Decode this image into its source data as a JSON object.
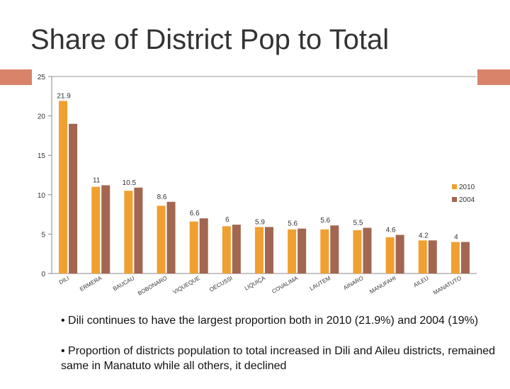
{
  "slide": {
    "title": "Share of District Pop to Total",
    "bullets": [
      "• Dili continues to have the largest proportion both in 2010 (21.9%) and 2004 (19%)",
      "• Proportion of districts population to total increased in Dili and Aileu districts, remained same in Manatuto while all others, it declined"
    ]
  },
  "colors": {
    "series_2010": "#f0a030",
    "series_2004": "#a36650",
    "accent_bar": "#d9836a",
    "grid": "#cccccc"
  },
  "chart_data": {
    "type": "bar",
    "categories": [
      "DILI",
      "ERMERA",
      "BAUCAU",
      "BOBONARO",
      "VIQUEQUE",
      "OECUSSI",
      "LIQUIÇA",
      "COVALIMA",
      "LAUTEM",
      "AINARO",
      "MANUFAHI",
      "AILEU",
      "MANATUTO"
    ],
    "series": [
      {
        "name": "2010",
        "values": [
          21.9,
          11,
          10.5,
          8.6,
          6.6,
          6,
          5.9,
          5.6,
          5.6,
          5.5,
          4.6,
          4.2,
          4
        ]
      },
      {
        "name": "2004",
        "values": [
          19,
          11.2,
          10.9,
          9.1,
          7,
          6.2,
          5.9,
          5.7,
          6.1,
          5.8,
          4.9,
          4.2,
          4
        ]
      }
    ],
    "data_labels": [
      "21.9",
      "11",
      "10.5",
      "8.6",
      "6.6",
      "6",
      "5.9",
      "5.6",
      "5.6",
      "5.5",
      "4.6",
      "4.2",
      "4"
    ],
    "ylim": [
      0,
      25
    ],
    "yticks": [
      0,
      5,
      10,
      15,
      20,
      25
    ],
    "grid": false,
    "legend_position": "right"
  }
}
